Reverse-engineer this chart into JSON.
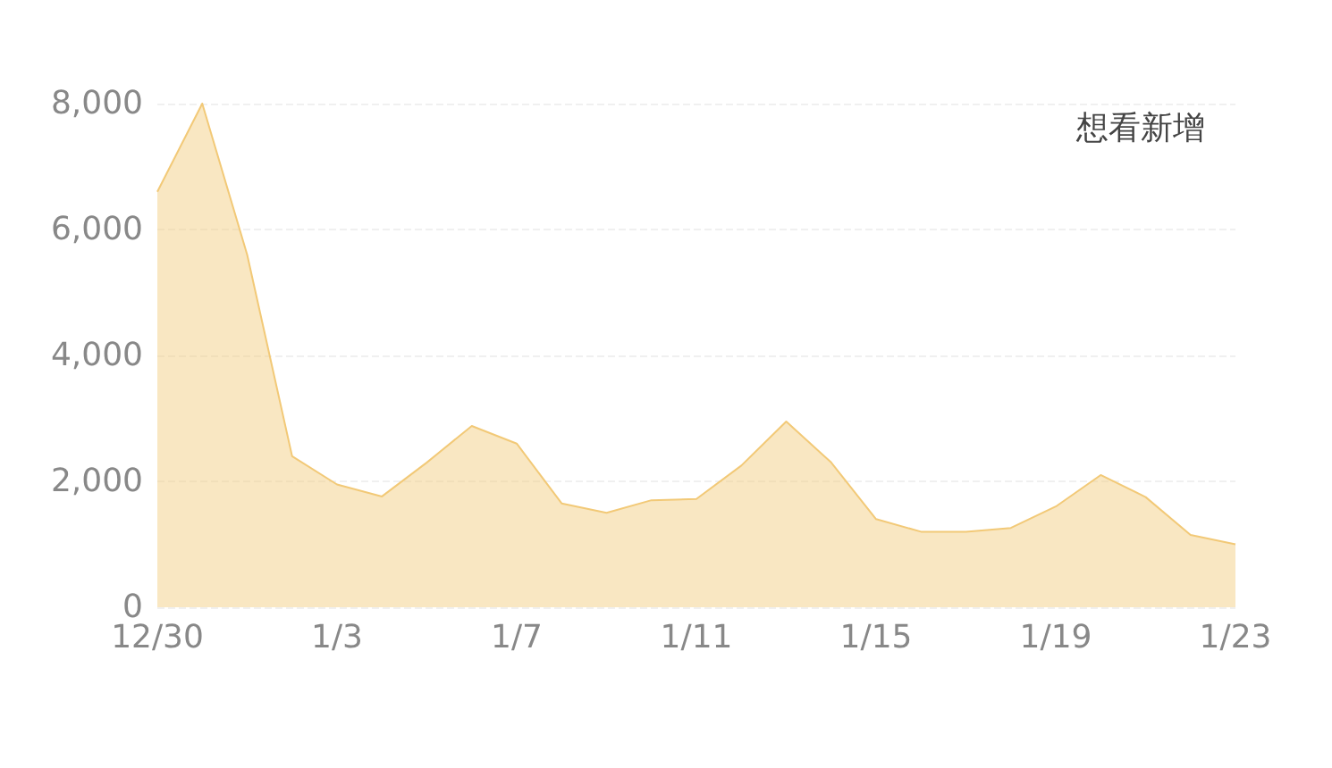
{
  "chart_data": {
    "type": "area",
    "title": "想看新增",
    "categories": [
      "12/30",
      null,
      null,
      null,
      "1/3",
      null,
      null,
      null,
      "1/7",
      null,
      null,
      null,
      "1/11",
      null,
      null,
      null,
      "1/15",
      null,
      null,
      null,
      "1/19",
      null,
      null,
      null,
      "1/23"
    ],
    "series": [
      {
        "color": "#f2c977",
        "values": [
          6600,
          8000,
          5600,
          2400,
          1950,
          1760,
          2300,
          2880,
          2600,
          1650,
          1500,
          1700,
          1720,
          2250,
          2950,
          2300,
          1400,
          1200,
          1200,
          1260,
          1600,
          2100,
          1750,
          1150,
          1000
        ]
      }
    ],
    "ylim": [
      0,
      8000
    ],
    "yticks": [
      0,
      {
        "value": 2000,
        "label": "2,000"
      },
      {
        "value": 4000,
        "label": "4,000"
      },
      {
        "value": 6000,
        "label": "6,000"
      },
      {
        "value": 8000,
        "label": "8,000"
      }
    ],
    "grid": "y",
    "marker": "none",
    "line_style": "solid"
  }
}
